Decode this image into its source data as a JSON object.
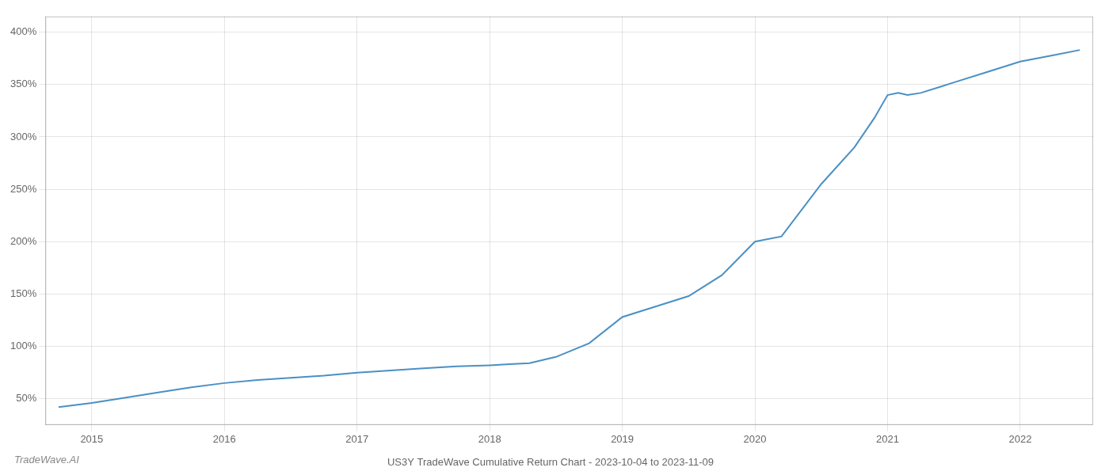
{
  "chart_data": {
    "type": "line",
    "title": "US3Y TradeWave Cumulative Return Chart - 2023-10-04 to 2023-11-09",
    "annotations": [
      "TradeWave.AI"
    ],
    "x": [
      2014.75,
      2015.0,
      2015.2,
      2015.5,
      2015.75,
      2016.0,
      2016.25,
      2016.5,
      2016.75,
      2017.0,
      2017.25,
      2017.5,
      2017.75,
      2018.0,
      2018.15,
      2018.3,
      2018.5,
      2018.75,
      2019.0,
      2019.25,
      2019.5,
      2019.75,
      2020.0,
      2020.2,
      2020.5,
      2020.75,
      2020.9,
      2021.0,
      2021.08,
      2021.15,
      2021.25,
      2021.4,
      2021.5,
      2021.75,
      2022.0,
      2022.25,
      2022.45
    ],
    "values": [
      42,
      46,
      50,
      56,
      61,
      65,
      68,
      70,
      72,
      75,
      77,
      79,
      81,
      82,
      83,
      84,
      90,
      103,
      128,
      138,
      148,
      168,
      200,
      205,
      255,
      290,
      318,
      340,
      342,
      340,
      342,
      348,
      352,
      362,
      372,
      378,
      383
    ],
    "color": "#4a90c4",
    "xlim": [
      2014.65,
      2022.55
    ],
    "xticks": [
      2015,
      2016,
      2017,
      2018,
      2019,
      2020,
      2021,
      2022
    ],
    "ylim": [
      25,
      415
    ],
    "yticks": [
      {
        "value": 50,
        "label": "50%"
      },
      {
        "value": 100,
        "label": "100%"
      },
      {
        "value": 150,
        "label": "150%"
      },
      {
        "value": 200,
        "label": "200%"
      },
      {
        "value": 250,
        "label": "250%"
      },
      {
        "value": 300,
        "label": "300%"
      },
      {
        "value": 350,
        "label": "350%"
      },
      {
        "value": 400,
        "label": "400%"
      }
    ],
    "grid": true
  }
}
